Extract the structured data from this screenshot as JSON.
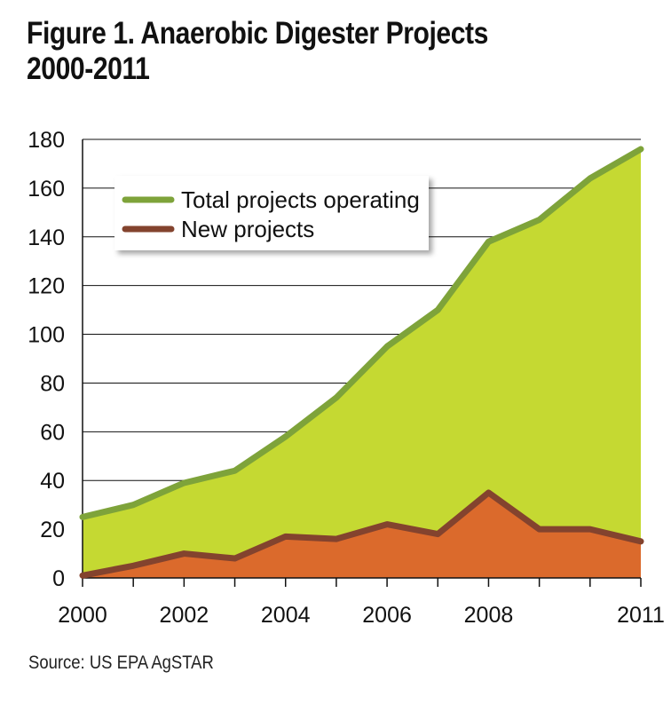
{
  "title_line1": "Figure 1. Anaerobic Digester Projects",
  "title_line2": "2000-2011",
  "source": "Source: US EPA AgSTAR",
  "colors": {
    "total_fill": "#c5d932",
    "total_line": "#7ea33a",
    "new_fill": "#db6a2c",
    "new_line": "#83432e",
    "grid": "#111111"
  },
  "chart_data": {
    "type": "area",
    "x": [
      2000,
      2001,
      2002,
      2003,
      2004,
      2005,
      2006,
      2007,
      2008,
      2009,
      2010,
      2011
    ],
    "x_tick_labels": [
      "2000",
      "2002",
      "2004",
      "2006",
      "2008",
      "2011"
    ],
    "x_tick_values": [
      2000,
      2002,
      2004,
      2006,
      2008,
      2011
    ],
    "xlim": [
      2000,
      2011
    ],
    "ylim": [
      0,
      180
    ],
    "y_ticks": [
      0,
      20,
      40,
      60,
      80,
      100,
      120,
      140,
      160,
      180
    ],
    "grid": "horizontal",
    "legend_position": "top-left",
    "series": [
      {
        "name": "Total projects operating",
        "values": [
          25,
          30,
          39,
          44,
          58,
          74,
          95,
          110,
          138,
          147,
          164,
          176
        ]
      },
      {
        "name": "New projects",
        "values": [
          1,
          5,
          10,
          8,
          17,
          16,
          22,
          18,
          35,
          20,
          20,
          15
        ]
      }
    ]
  }
}
